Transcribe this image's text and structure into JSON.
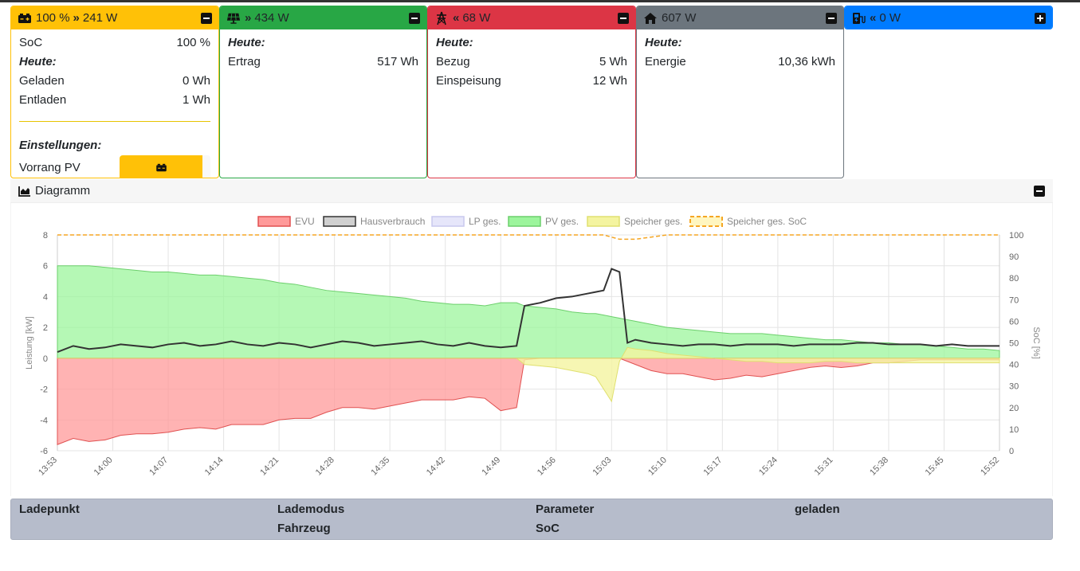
{
  "cards": {
    "battery": {
      "header_power": "100 % ",
      "header_watts": "241 W",
      "soc_label": "SoC",
      "soc_value": "100 %",
      "today_label": "Heute:",
      "charged_label": "Geladen",
      "charged_value": "0 Wh",
      "discharged_label": "Entladen",
      "discharged_value": "1 Wh",
      "settings_label": "Einstellungen:",
      "priority_label": "Vorrang PV",
      "icon": "battery-icon",
      "color": "#ffc107"
    },
    "pv": {
      "header_watts": "434 W",
      "today_label": "Heute:",
      "yield_label": "Ertrag",
      "yield_value": "517 Wh",
      "icon": "solar-panel-icon",
      "color": "#28a745"
    },
    "grid": {
      "header_watts": "68 W",
      "today_label": "Heute:",
      "import_label": "Bezug",
      "import_value": "5 Wh",
      "export_label": "Einspeisung",
      "export_value": "12 Wh",
      "icon": "power-pole-icon",
      "color": "#dc3545"
    },
    "house": {
      "header_watts": "607 W",
      "today_label": "Heute:",
      "energy_label": "Energie",
      "energy_value": "10,36 kWh",
      "icon": "home-icon",
      "color": "#6c757d"
    },
    "chargepoints": {
      "header_watts": "0 W",
      "icon": "charging-station-icon",
      "color": "#007bff"
    }
  },
  "diagram": {
    "title": "Diagramm",
    "icon": "area-chart-icon"
  },
  "lp_table": {
    "col1": "Ladepunkt",
    "col2_line1": "Lademodus",
    "col2_line2": "Fahrzeug",
    "col3_line1": "Parameter",
    "col3_line2": "SoC",
    "col4": "geladen"
  },
  "chart_data": {
    "type": "area",
    "ylabel": "Leistung [kW]",
    "y2label": "SoC [%]",
    "ylim": [
      -6,
      8
    ],
    "y2lim": [
      0,
      100
    ],
    "yticks": [
      "8",
      "6",
      "4",
      "2",
      "0",
      "-2",
      "-4",
      "-6"
    ],
    "y2ticks": [
      "100",
      "90",
      "80",
      "70",
      "60",
      "50",
      "40",
      "30",
      "20",
      "10",
      "0"
    ],
    "xticks": [
      "13:53",
      "14:00",
      "14:07",
      "14:14",
      "14:21",
      "14:28",
      "14:35",
      "14:42",
      "14:49",
      "14:56",
      "15:03",
      "15:10",
      "15:17",
      "15:24",
      "15:31",
      "15:38",
      "15:45",
      "15:52"
    ],
    "legend_position": "top",
    "grid": true,
    "legend": [
      {
        "name": "EVU",
        "color": "#ff9a9a",
        "border": "#e05050",
        "dashed": false
      },
      {
        "name": "Hausverbrauch",
        "color": "#d0d0d0",
        "border": "#333333",
        "dashed": false
      },
      {
        "name": "LP ges.",
        "color": "#e6e6fa",
        "border": "#c8c8ee",
        "dashed": false
      },
      {
        "name": "PV ges.",
        "color": "#9cf59c",
        "border": "#6ccf6c",
        "dashed": false
      },
      {
        "name": "Speicher ges.",
        "color": "#f4f4a0",
        "border": "#e0e070",
        "dashed": false
      },
      {
        "name": "Speicher ges. SoC",
        "color": "#fff6c0",
        "border": "#f5a623",
        "dashed": true
      }
    ],
    "x_minutes": [
      0,
      2,
      4,
      6,
      8,
      10,
      12,
      14,
      16,
      18,
      20,
      22,
      24,
      26,
      28,
      30,
      32,
      34,
      36,
      38,
      40,
      42,
      44,
      46,
      48,
      50,
      52,
      54,
      56,
      58,
      59,
      61,
      63,
      65,
      67,
      68,
      69,
      70,
      71,
      72,
      73,
      75,
      77,
      79,
      81,
      83,
      85,
      87,
      89,
      91,
      93,
      95,
      97,
      99,
      101,
      103,
      105,
      107,
      109,
      111,
      113,
      115,
      117,
      119
    ],
    "series": [
      {
        "name": "PV ges.",
        "values": [
          6.0,
          6.0,
          6.0,
          5.9,
          5.8,
          5.7,
          5.6,
          5.6,
          5.5,
          5.4,
          5.4,
          5.3,
          5.2,
          5.1,
          4.9,
          4.8,
          4.6,
          4.4,
          4.3,
          4.2,
          4.1,
          4.0,
          3.9,
          3.7,
          3.6,
          3.5,
          3.5,
          3.4,
          3.6,
          3.6,
          3.4,
          3.3,
          3.2,
          3.0,
          2.9,
          2.9,
          2.8,
          2.7,
          2.6,
          2.5,
          2.4,
          2.2,
          2.0,
          1.9,
          1.8,
          1.7,
          1.6,
          1.6,
          1.6,
          1.5,
          1.4,
          1.3,
          1.2,
          1.2,
          1.1,
          1.0,
          1.0,
          0.9,
          0.9,
          0.8,
          0.7,
          0.6,
          0.6,
          0.5
        ]
      },
      {
        "name": "Hausverbrauch",
        "values": [
          0.4,
          0.8,
          0.6,
          0.7,
          0.9,
          0.8,
          0.7,
          0.9,
          1.0,
          0.8,
          0.9,
          1.1,
          0.9,
          0.8,
          1.0,
          0.9,
          0.7,
          0.9,
          1.1,
          1.0,
          0.8,
          0.9,
          1.0,
          1.1,
          0.9,
          0.8,
          1.0,
          0.8,
          0.7,
          0.8,
          3.4,
          3.6,
          3.9,
          4.0,
          4.2,
          4.3,
          4.4,
          5.8,
          5.6,
          1.0,
          1.2,
          1.0,
          0.9,
          0.8,
          0.9,
          0.9,
          0.8,
          0.9,
          0.9,
          0.9,
          0.8,
          0.9,
          0.9,
          0.9,
          1.0,
          1.0,
          0.9,
          0.9,
          0.9,
          0.8,
          0.9,
          0.8,
          0.8,
          0.8
        ]
      },
      {
        "name": "EVU",
        "values": [
          -5.6,
          -5.2,
          -5.4,
          -5.3,
          -5.0,
          -4.9,
          -4.9,
          -4.8,
          -4.6,
          -4.5,
          -4.6,
          -4.3,
          -4.3,
          -4.3,
          -4.0,
          -3.9,
          -3.9,
          -3.5,
          -3.2,
          -3.2,
          -3.3,
          -3.1,
          -2.9,
          -2.7,
          -2.7,
          -2.7,
          -2.5,
          -2.6,
          -3.4,
          -3.2,
          -0.1,
          0.0,
          0.0,
          0.0,
          0.0,
          0.0,
          0.0,
          0.0,
          0.0,
          -0.2,
          -0.4,
          -0.8,
          -1.0,
          -1.0,
          -1.2,
          -1.4,
          -1.3,
          -1.1,
          -1.2,
          -1.0,
          -0.8,
          -0.6,
          -0.5,
          -0.6,
          -0.5,
          -0.3,
          -0.3,
          -0.2,
          -0.1,
          -0.1,
          -0.1,
          -0.1,
          -0.1,
          -0.1
        ]
      },
      {
        "name": "Speicher ges.",
        "values": [
          0,
          0,
          0,
          0,
          0,
          0,
          0,
          0,
          0,
          0,
          0,
          0,
          0,
          0,
          0,
          0,
          0,
          0,
          0,
          0,
          0,
          0,
          0,
          0,
          0,
          0,
          0,
          0,
          0,
          0,
          -0.4,
          -0.5,
          -0.6,
          -0.8,
          -1.0,
          -1.2,
          -2.0,
          -2.8,
          -0.2,
          0.7,
          0.6,
          0.5,
          0.3,
          0.2,
          0.1,
          0.0,
          -0.1,
          -0.2,
          -0.2,
          -0.3,
          -0.3,
          -0.3,
          -0.2,
          -0.2,
          -0.3,
          -0.3,
          -0.3,
          -0.3,
          -0.3,
          -0.3,
          -0.3,
          -0.3,
          -0.3,
          -0.3
        ]
      },
      {
        "name": "Speicher ges. SoC",
        "values": [
          100,
          100,
          100,
          100,
          100,
          100,
          100,
          100,
          100,
          100,
          100,
          100,
          100,
          100,
          100,
          100,
          100,
          100,
          100,
          100,
          100,
          100,
          100,
          100,
          100,
          100,
          100,
          100,
          100,
          100,
          100,
          100,
          100,
          100,
          100,
          100,
          100,
          99,
          98,
          98,
          98,
          99,
          100,
          100,
          100,
          100,
          100,
          100,
          100,
          100,
          100,
          100,
          100,
          100,
          100,
          100,
          100,
          100,
          100,
          100,
          100,
          100,
          100,
          100
        ]
      }
    ]
  }
}
